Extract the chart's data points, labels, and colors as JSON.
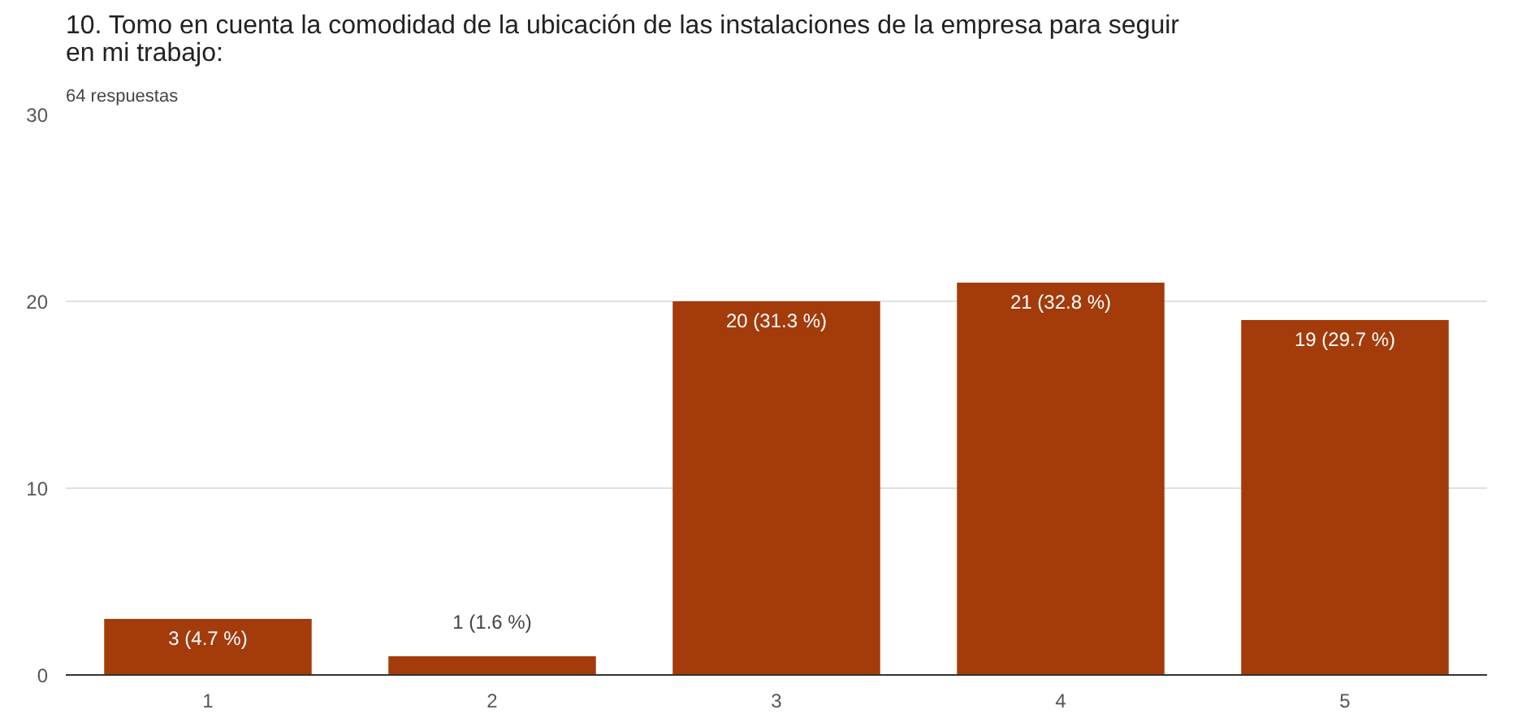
{
  "chart_data": {
    "type": "bar",
    "title": "10. Tomo en cuenta la comodidad de la ubicación de las instalaciones de la empresa para seguir en mi trabajo:",
    "subtitle": "64 respuestas",
    "categories": [
      "1",
      "2",
      "3",
      "4",
      "5"
    ],
    "values": [
      3,
      1,
      20,
      21,
      19
    ],
    "value_labels": [
      "3 (4.7 %)",
      "1 (1.6 %)",
      "20 (31.3 %)",
      "21 (32.8 %)",
      "19 (29.7 %)"
    ],
    "color": "#a33b0b",
    "ylim": [
      0,
      30
    ],
    "yticks": [
      0,
      10,
      20,
      30
    ],
    "grid": "y"
  }
}
